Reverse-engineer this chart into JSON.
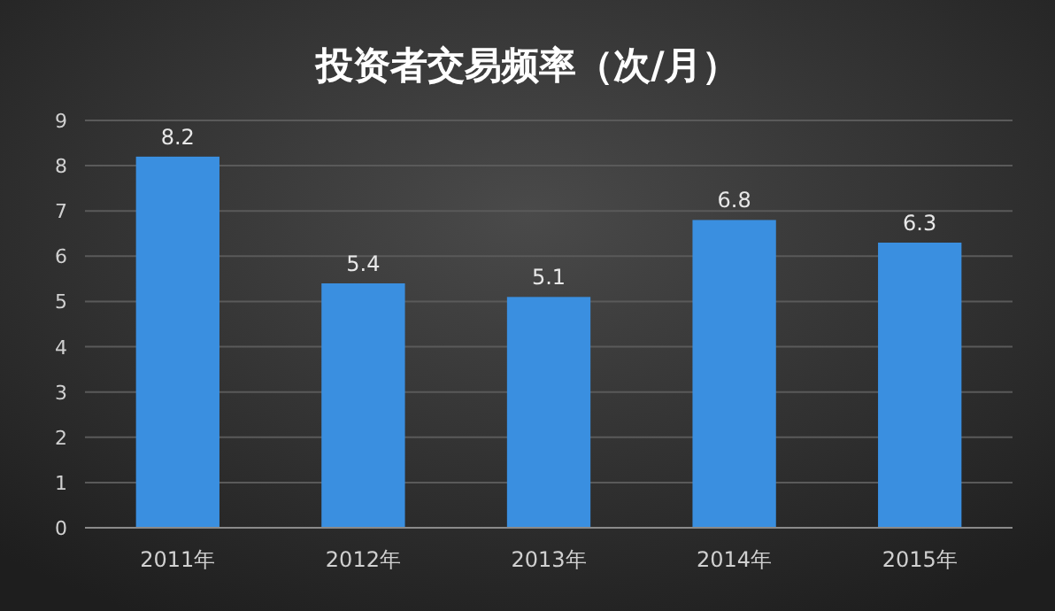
{
  "chart_data": {
    "type": "bar",
    "title": "投资者交易频率（次/月）",
    "categories": [
      "2011年",
      "2012年",
      "2013年",
      "2014年",
      "2015年"
    ],
    "values": [
      8.2,
      5.4,
      5.1,
      6.8,
      6.3
    ],
    "color": "#3a8fe0",
    "ylim": [
      0,
      9
    ],
    "yticks": [
      0,
      1,
      2,
      3,
      4,
      5,
      6,
      7,
      8,
      9
    ],
    "grid": "y",
    "data_labels": true
  }
}
